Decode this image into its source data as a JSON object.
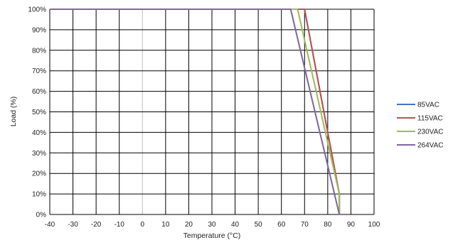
{
  "chart_data": {
    "type": "line",
    "title": "",
    "xlabel": "Temperature (°C)",
    "ylabel": "Load (%)",
    "xlim": [
      -40,
      100
    ],
    "ylim": [
      0,
      100
    ],
    "x_ticks": [
      -40,
      -30,
      -20,
      -10,
      0,
      10,
      20,
      30,
      40,
      50,
      60,
      70,
      80,
      90,
      100
    ],
    "y_ticks": [
      0,
      10,
      20,
      30,
      40,
      50,
      60,
      70,
      80,
      90,
      100
    ],
    "y_tick_labels": [
      "0%",
      "10%",
      "20%",
      "30%",
      "40%",
      "50%",
      "60%",
      "70%",
      "80%",
      "90%",
      "100%"
    ],
    "x_tick_labels": [
      "-40",
      "-30",
      "-20",
      "-10",
      "0",
      "10",
      "20",
      "30",
      "40",
      "50",
      "60",
      "70",
      "80",
      "90",
      "100"
    ],
    "grid": true,
    "legend_position": "right",
    "series": [
      {
        "name": "85VAC",
        "color": "#4472C4",
        "x": [
          -40,
          70,
          85,
          85
        ],
        "y": [
          100,
          100,
          10,
          0
        ]
      },
      {
        "name": "115VAC",
        "color": "#C0504D",
        "x": [
          -40,
          70,
          85,
          85
        ],
        "y": [
          100,
          100,
          10,
          0
        ]
      },
      {
        "name": "230VAC",
        "color": "#9BBB59",
        "x": [
          -40,
          67,
          85,
          85
        ],
        "y": [
          100,
          100,
          10,
          0
        ]
      },
      {
        "name": "264VAC",
        "color": "#8064A2",
        "x": [
          -40,
          64,
          85
        ],
        "y": [
          100,
          100,
          0
        ]
      }
    ]
  }
}
